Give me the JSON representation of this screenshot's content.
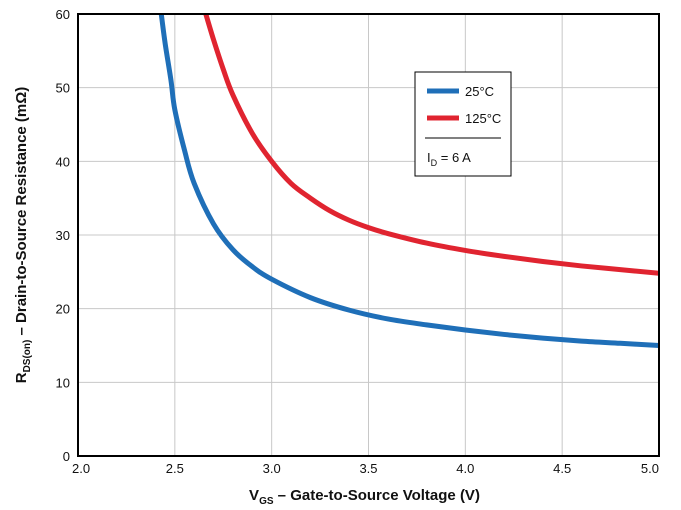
{
  "chart_data": {
    "type": "line",
    "xlabel_main": "V",
    "xlabel_sub": "GS",
    "xlabel_rest": " – Gate-to-Source Voltage (V)",
    "ylabel_main": "R",
    "ylabel_sub": "DS(on)",
    "ylabel_rest": " – Drain-to-Source Resistance (mΩ)",
    "xlim": [
      2.0,
      5.0
    ],
    "ylim": [
      0,
      60
    ],
    "x_ticks": [
      "2.0",
      "2.5",
      "3.0",
      "3.5",
      "4.0",
      "4.5",
      "5.0"
    ],
    "y_ticks": [
      "0",
      "10",
      "20",
      "30",
      "40",
      "50",
      "60"
    ],
    "grid": true,
    "legend_position": "top-right",
    "legend_note_main": "I",
    "legend_note_sub": "D",
    "legend_note_rest": " = 6 A",
    "series": [
      {
        "name": "25°C",
        "color": "#1f6fb8",
        "points": [
          [
            2.43,
            60
          ],
          [
            2.45,
            56
          ],
          [
            2.48,
            51
          ],
          [
            2.5,
            47
          ],
          [
            2.55,
            41.5
          ],
          [
            2.6,
            37
          ],
          [
            2.7,
            31.5
          ],
          [
            2.8,
            28
          ],
          [
            2.9,
            25.7
          ],
          [
            3.0,
            24
          ],
          [
            3.2,
            21.5
          ],
          [
            3.4,
            19.8
          ],
          [
            3.6,
            18.6
          ],
          [
            3.8,
            17.8
          ],
          [
            4.0,
            17.1
          ],
          [
            4.2,
            16.5
          ],
          [
            4.4,
            16.0
          ],
          [
            4.6,
            15.6
          ],
          [
            4.8,
            15.3
          ],
          [
            5.0,
            15.0
          ]
        ]
      },
      {
        "name": "125°C",
        "color": "#e02430",
        "points": [
          [
            2.66,
            60
          ],
          [
            2.7,
            56.5
          ],
          [
            2.75,
            52.5
          ],
          [
            2.8,
            49
          ],
          [
            2.9,
            43.8
          ],
          [
            3.0,
            40
          ],
          [
            3.1,
            37
          ],
          [
            3.2,
            35
          ],
          [
            3.3,
            33.3
          ],
          [
            3.4,
            32
          ],
          [
            3.5,
            31
          ],
          [
            3.6,
            30.2
          ],
          [
            3.8,
            28.9
          ],
          [
            4.0,
            27.9
          ],
          [
            4.2,
            27.1
          ],
          [
            4.4,
            26.4
          ],
          [
            4.6,
            25.8
          ],
          [
            4.8,
            25.3
          ],
          [
            5.0,
            24.8
          ]
        ]
      }
    ]
  }
}
